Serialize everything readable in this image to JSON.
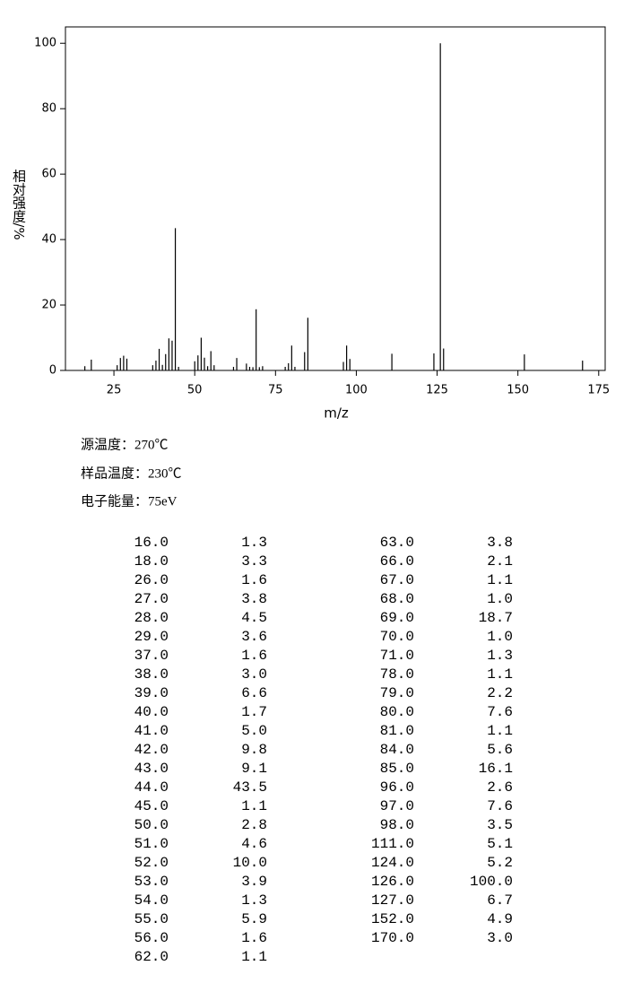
{
  "chart_data": {
    "type": "stem",
    "xlabel": "m/z",
    "ylabel": "相对强度/%",
    "xlim": [
      10,
      177
    ],
    "ylim": [
      0,
      105
    ],
    "xticks": [
      25,
      50,
      75,
      100,
      125,
      150,
      175
    ],
    "yticks": [
      0,
      20,
      40,
      60,
      80,
      100
    ],
    "color": "#000000",
    "x": [
      16,
      18,
      26,
      27,
      28,
      29,
      37,
      38,
      39,
      40,
      41,
      42,
      43,
      44,
      45,
      50,
      51,
      52,
      53,
      54,
      55,
      56,
      62,
      63,
      66,
      67,
      68,
      69,
      70,
      71,
      78,
      79,
      80,
      81,
      84,
      85,
      96,
      97,
      98,
      111,
      124,
      126,
      127,
      152,
      170
    ],
    "values": [
      1.3,
      3.3,
      1.6,
      3.8,
      4.5,
      3.6,
      1.6,
      3.0,
      6.6,
      1.7,
      5.0,
      9.8,
      9.1,
      43.5,
      1.1,
      2.8,
      4.6,
      10.0,
      3.9,
      1.3,
      5.9,
      1.6,
      1.1,
      3.8,
      2.1,
      1.1,
      1.0,
      18.7,
      1.0,
      1.3,
      1.1,
      2.2,
      7.6,
      1.1,
      5.6,
      16.1,
      2.6,
      7.6,
      3.5,
      5.1,
      5.2,
      100.0,
      6.7,
      4.9,
      3.0
    ],
    "x_labels": [
      "16.0",
      "18.0",
      "26.0",
      "27.0",
      "28.0",
      "29.0",
      "37.0",
      "38.0",
      "39.0",
      "40.0",
      "41.0",
      "42.0",
      "43.0",
      "44.0",
      "45.0",
      "50.0",
      "51.0",
      "52.0",
      "53.0",
      "54.0",
      "55.0",
      "56.0",
      "62.0",
      "63.0",
      "66.0",
      "67.0",
      "68.0",
      "69.0",
      "70.0",
      "71.0",
      "78.0",
      "79.0",
      "80.0",
      "81.0",
      "84.0",
      "85.0",
      "96.0",
      "97.0",
      "98.0",
      "111.0",
      "124.0",
      "126.0",
      "127.0",
      "152.0",
      "170.0"
    ],
    "value_labels": [
      "1.3",
      "3.3",
      "1.6",
      "3.8",
      "4.5",
      "3.6",
      "1.6",
      "3.0",
      "6.6",
      "1.7",
      "5.0",
      "9.8",
      "9.1",
      "43.5",
      "1.1",
      "2.8",
      "4.6",
      "10.0",
      "3.9",
      "1.3",
      "5.9",
      "1.6",
      "1.1",
      "3.8",
      "2.1",
      "1.1",
      "1.0",
      "18.7",
      "1.0",
      "1.3",
      "1.1",
      "2.2",
      "7.6",
      "1.1",
      "5.6",
      "16.1",
      "2.6",
      "7.6",
      "3.5",
      "5.1",
      "5.2",
      "100.0",
      "6.7",
      "4.9",
      "3.0"
    ]
  },
  "notes": [
    "源温度：270℃",
    "样品温度：230℃",
    "电子能量：75eV"
  ]
}
